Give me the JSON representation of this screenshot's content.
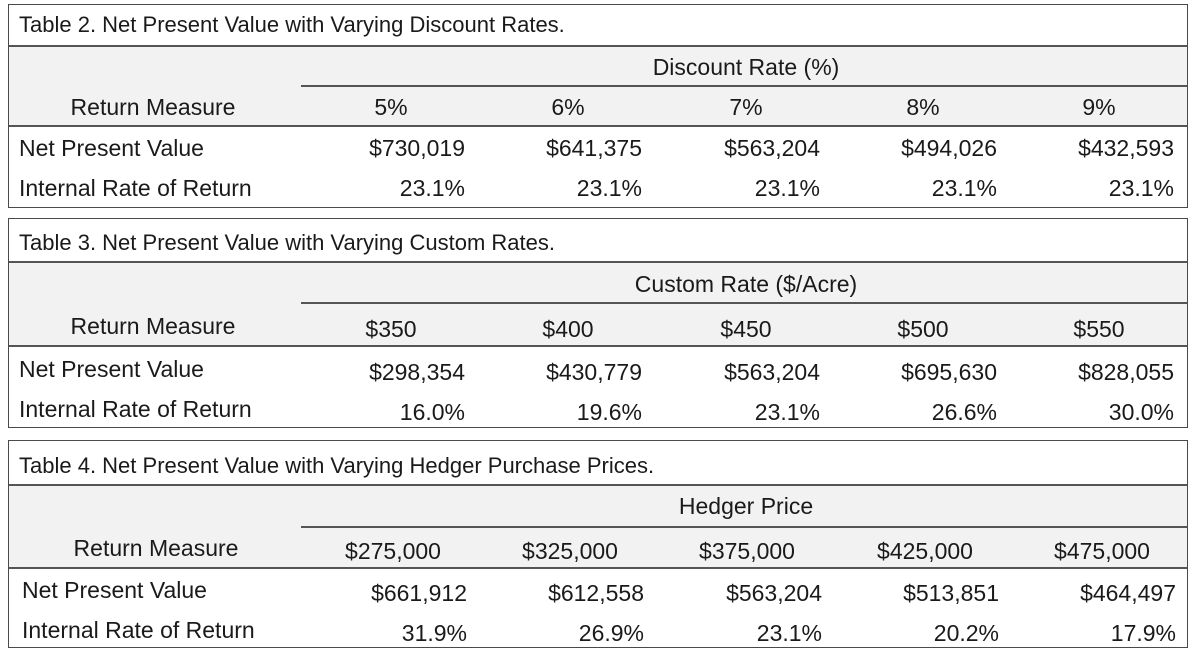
{
  "tables": [
    {
      "caption": "Table 2. Net Present Value with Varying Discount Rates.",
      "group_header": "Discount Rate (%)",
      "row_header": "Return Measure",
      "columns": [
        "5%",
        "6%",
        "7%",
        "8%",
        "9%"
      ],
      "rows": [
        {
          "label": "Net Present Value",
          "values": [
            "$730,019",
            "$641,375",
            "$563,204",
            "$494,026",
            "$432,593"
          ]
        },
        {
          "label": "Internal Rate of Return",
          "values": [
            "23.1%",
            "23.1%",
            "23.1%",
            "23.1%",
            "23.1%"
          ]
        }
      ]
    },
    {
      "caption": "Table 3. Net Present Value with Varying Custom Rates.",
      "group_header": "Custom Rate ($/Acre)",
      "row_header": "Return Measure",
      "columns": [
        "$350",
        "$400",
        "$450",
        "$500",
        "$550"
      ],
      "rows": [
        {
          "label": "Net Present Value",
          "values": [
            "$298,354",
            "$430,779",
            "$563,204",
            "$695,630",
            "$828,055"
          ]
        },
        {
          "label": "Internal Rate of Return",
          "values": [
            "16.0%",
            "19.6%",
            "23.1%",
            "26.6%",
            "30.0%"
          ]
        }
      ]
    },
    {
      "caption": "Table 4. Net Present Value with Varying Hedger Purchase Prices.",
      "group_header": "Hedger Price",
      "row_header": "Return Measure",
      "columns": [
        "$275,000",
        "$325,000",
        "$375,000",
        "$425,000",
        "$475,000"
      ],
      "rows": [
        {
          "label": "Net Present Value",
          "values": [
            "$661,912",
            "$612,558",
            "$563,204",
            "$513,851",
            "$464,497"
          ]
        },
        {
          "label": "Internal Rate of Return",
          "values": [
            "31.9%",
            "26.9%",
            "23.1%",
            "20.2%",
            "17.9%"
          ]
        }
      ]
    }
  ]
}
